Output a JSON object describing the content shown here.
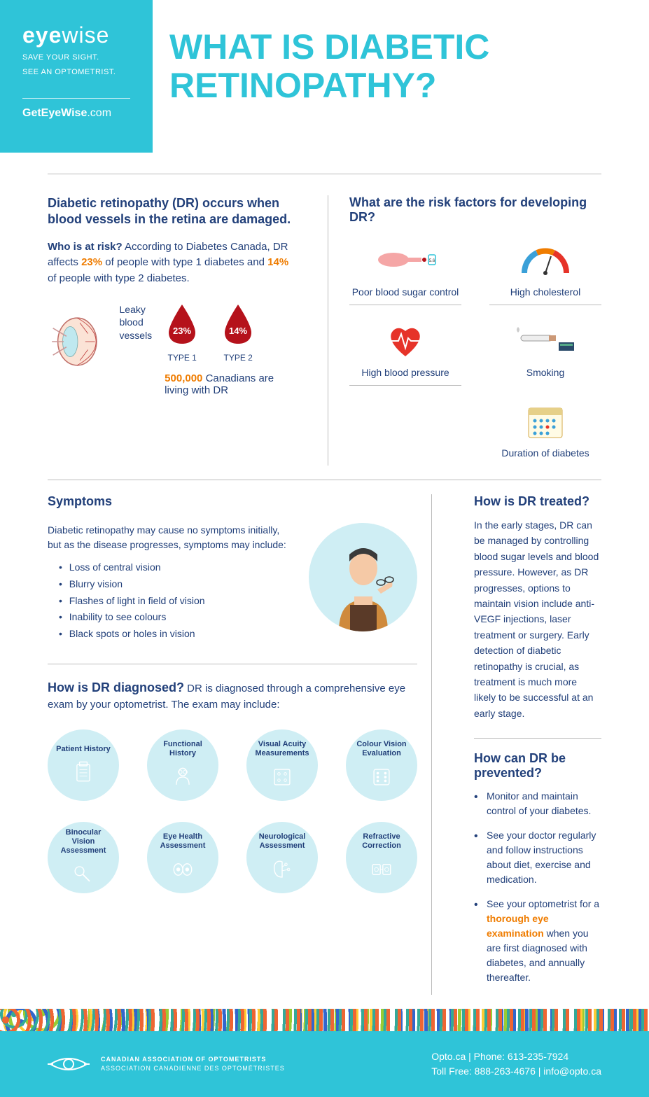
{
  "brand": {
    "logo_bold": "eye",
    "logo_light": "wise",
    "tagline1": "SAVE YOUR SIGHT.",
    "tagline2": "SEE AN OPTOMETRIST.",
    "website_bold": "GetEyeWise",
    "website_ext": ".com",
    "accent_color": "#2fc4d8",
    "text_color": "#22407a",
    "highlight_color": "#ef7c00"
  },
  "title": "WHAT IS DIABETIC RETINOPATHY?",
  "intro": {
    "heading": "Diabetic retinopathy (DR) occurs when blood vessels in the retina are damaged.",
    "who_label": "Who is at risk?",
    "who_text1": " According to Diabetes Canada, DR affects ",
    "stat1": "23%",
    "who_text2": " of people with type 1 diabetes and ",
    "stat2": "14%",
    "who_text3": " of people with type 2 diabetes.",
    "eye_label": "Leaky blood vessels",
    "drops": [
      {
        "pct": "23%",
        "type": "TYPE 1"
      },
      {
        "pct": "14%",
        "type": "TYPE 2"
      }
    ],
    "canadians_num": "500,000",
    "canadians_text": " Canadians are living with DR"
  },
  "risk": {
    "heading": "What are the risk factors for developing DR?",
    "items": [
      {
        "label": "Poor blood sugar control",
        "icon": "hand-blood"
      },
      {
        "label": "High cholesterol",
        "icon": "gauge"
      },
      {
        "label": "High blood pressure",
        "icon": "heart"
      },
      {
        "label": "Smoking",
        "icon": "cigarette"
      },
      {
        "label": "Duration of diabetes",
        "icon": "calendar"
      }
    ]
  },
  "symptoms": {
    "heading": "Symptoms",
    "intro": "Diabetic retinopathy may cause no symptoms initially, but as the disease progresses, symptoms may include:",
    "list": [
      "Loss of central vision",
      "Blurry vision",
      "Flashes of light in field of vision",
      "Inability to see colours",
      "Black spots or holes in vision"
    ]
  },
  "diagnosed": {
    "heading": "How is DR diagnosed?",
    "text": " DR is diagnosed through a comprehensive eye exam by your optometrist. The exam may include:",
    "items": [
      "Patient History",
      "Functional History",
      "Visual Acuity Measurements",
      "Colour Vision Evaluation",
      "Binocular Vision Assessment",
      "Eye Health Assessment",
      "Neurological Assessment",
      "Refractive Correction"
    ]
  },
  "treated": {
    "heading": "How is DR treated?",
    "text": "In the early stages, DR can be managed by controlling blood sugar levels and blood pressure.  However, as DR progresses, options to maintain vision include anti-VEGF injections, laser treatment or surgery. Early detection of diabetic retinopathy is crucial, as treatment is much more likely to be successful at an early stage."
  },
  "prevented": {
    "heading": "How can DR be prevented?",
    "items": [
      {
        "text": "Monitor and maintain control of your diabetes."
      },
      {
        "text": "See your doctor regularly and follow instructions about diet, exercise and medication."
      },
      {
        "pre": "See your optometrist for a ",
        "highlight": "thorough eye examination",
        "post": " when you are first diagnosed with diabetes, and annually thereafter."
      }
    ]
  },
  "footer": {
    "org_en": "CANADIAN ASSOCIATION OF OPTOMETRISTS",
    "org_fr": "ASSOCIATION CANADIENNE DES OPTOMÉTRISTES",
    "contact1": "Opto.ca  |  Phone: 613-235-7924",
    "contact2": "Toll Free: 888-263-4676  |  info@opto.ca"
  }
}
